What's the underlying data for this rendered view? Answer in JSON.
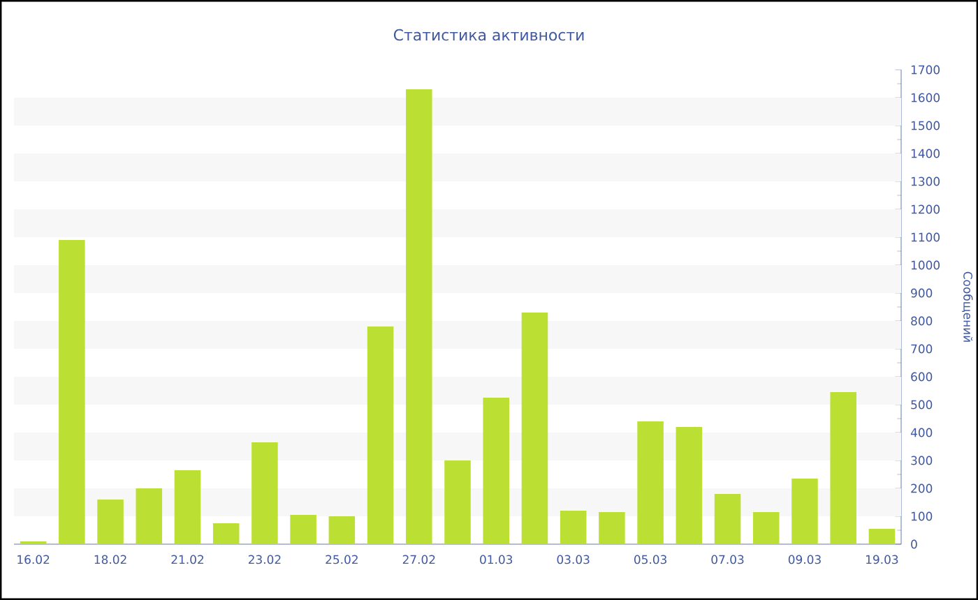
{
  "chart_data": {
    "type": "bar",
    "title": "Статистика активности",
    "ylabel": "Сообщений",
    "categories": [
      "16.02",
      null,
      "18.02",
      null,
      "21.02",
      null,
      "23.02",
      null,
      "25.02",
      null,
      "27.02",
      null,
      "01.03",
      null,
      "03.03",
      null,
      "05.03",
      null,
      "07.03",
      null,
      "09.03",
      null,
      "19.03"
    ],
    "values": [
      10,
      1090,
      160,
      200,
      265,
      75,
      365,
      105,
      100,
      780,
      1630,
      300,
      525,
      830,
      120,
      115,
      440,
      420,
      180,
      115,
      235,
      545,
      55
    ],
    "color": "#bbe033",
    "ylim": [
      0,
      1700
    ],
    "yticks": [
      0,
      100,
      200,
      300,
      400,
      500,
      600,
      700,
      800,
      900,
      1000,
      1100,
      1200,
      1300,
      1400,
      1500,
      1600,
      1700
    ],
    "bands": [
      {
        "axis": "y",
        "from": 100,
        "to": 200,
        "color": "#f7f7f7"
      },
      {
        "axis": "y",
        "from": 300,
        "to": 400,
        "color": "#f7f7f7"
      },
      {
        "axis": "y",
        "from": 500,
        "to": 600,
        "color": "#f7f7f7"
      },
      {
        "axis": "y",
        "from": 700,
        "to": 800,
        "color": "#f7f7f7"
      },
      {
        "axis": "y",
        "from": 900,
        "to": 1000,
        "color": "#f7f7f7"
      },
      {
        "axis": "y",
        "from": 1100,
        "to": 1200,
        "color": "#f7f7f7"
      },
      {
        "axis": "y",
        "from": 1300,
        "to": 1400,
        "color": "#f7f7f7"
      },
      {
        "axis": "y",
        "from": 1500,
        "to": 1600,
        "color": "#f7f7f7"
      }
    ]
  }
}
